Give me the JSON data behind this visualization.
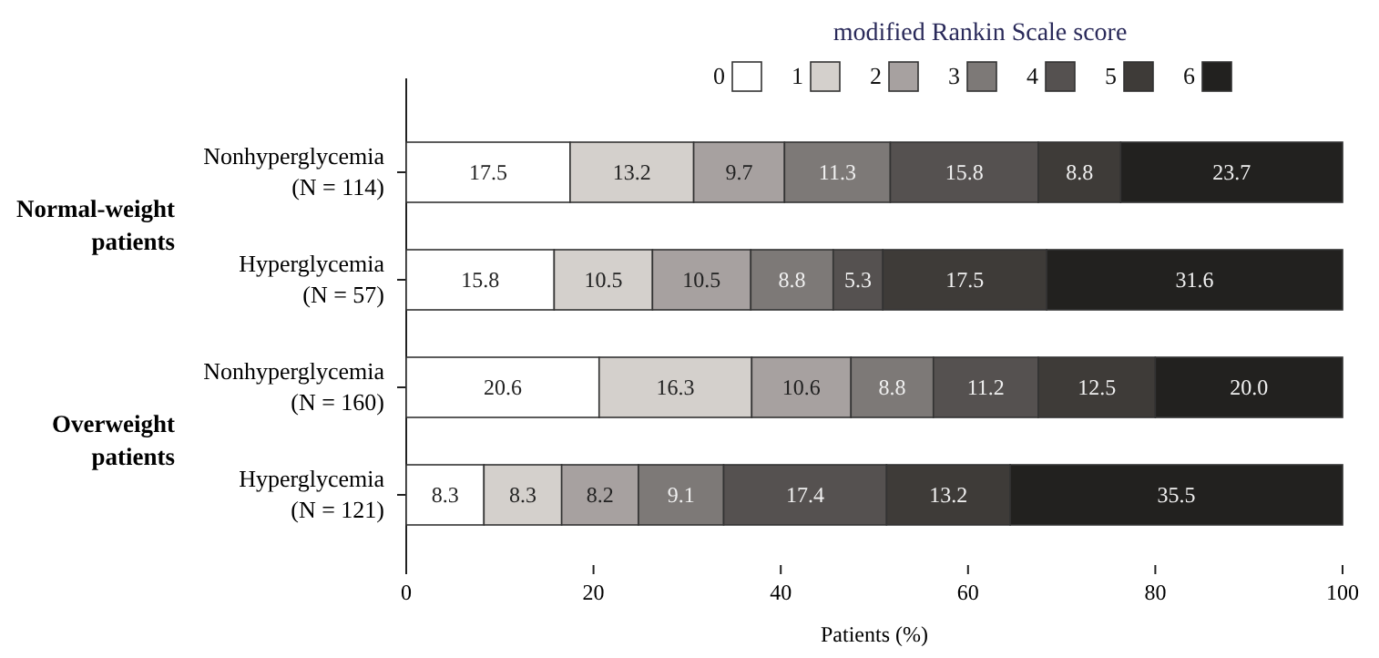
{
  "chart_data": {
    "type": "bar",
    "orientation": "horizontal",
    "stacked": true,
    "legend": "top",
    "legend_title": "modified Rankin Scale score",
    "xlabel": "Patients (%)",
    "xlim": [
      0,
      100
    ],
    "xticks": [
      0,
      20,
      40,
      60,
      80,
      100
    ],
    "categories": [
      "Nonhyperglycemia (N = 114)",
      "Hyperglycemia (N = 57)",
      "Nonhyperglycemia (N = 160)",
      "Hyperglycemia (N = 121)"
    ],
    "annotations": [
      "Normal-weight\npatients",
      "Overweight\npatients"
    ],
    "series": [
      {
        "name": "0",
        "color": "#ffffff",
        "values": [
          17.5,
          15.8,
          20.6,
          8.3
        ],
        "value_labels": [
          "17.5",
          "15.8",
          "20.6",
          "8.3"
        ]
      },
      {
        "name": "1",
        "color": "#d4d0cc",
        "values": [
          13.2,
          10.5,
          16.3,
          8.3
        ],
        "value_labels": [
          "13.2",
          "10.5",
          "16.3",
          "8.3"
        ]
      },
      {
        "name": "2",
        "color": "#a7a1a0",
        "values": [
          9.7,
          10.5,
          10.6,
          8.2
        ],
        "value_labels": [
          "9.7",
          "10.5",
          "10.6",
          "8.2"
        ]
      },
      {
        "name": "3",
        "color": "#7d7977",
        "values": [
          11.3,
          8.8,
          8.8,
          9.1
        ],
        "value_labels": [
          "11.3",
          "8.8",
          "8.8",
          "9.1"
        ]
      },
      {
        "name": "4",
        "color": "#555150",
        "values": [
          15.8,
          5.3,
          11.2,
          17.4
        ],
        "value_labels": [
          "15.8",
          "5.3",
          "11.2",
          "17.4"
        ]
      },
      {
        "name": "5",
        "color": "#3e3b38",
        "values": [
          8.8,
          17.5,
          12.5,
          13.2
        ],
        "value_labels": [
          "8.8",
          "17.5",
          "12.5",
          "13.2"
        ]
      },
      {
        "name": "6",
        "color": "#22211f",
        "values": [
          23.7,
          31.6,
          20.0,
          35.5
        ],
        "value_labels": [
          "23.7",
          "31.6",
          "20.0",
          "35.5"
        ]
      }
    ]
  }
}
